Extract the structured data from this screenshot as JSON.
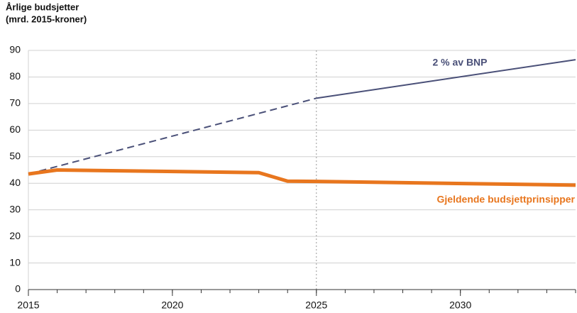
{
  "chart_data": {
    "type": "line",
    "title": [
      "Årlige budsjetter",
      "(mrd. 2015-kroner)"
    ],
    "xlim": [
      2015,
      2034
    ],
    "xticks": [
      2015,
      2020,
      2025,
      2030
    ],
    "ylim": [
      0,
      90
    ],
    "yticks": [
      0,
      10,
      20,
      30,
      40,
      50,
      60,
      70,
      80,
      90
    ],
    "grid": true,
    "vline": 2025,
    "series": [
      {
        "name": "2 % av BNP",
        "color": "#4a5078",
        "width": 2,
        "dash_until": 2025,
        "x": [
          2015,
          2025,
          2034
        ],
        "values": [
          43.5,
          72,
          86.5
        ]
      },
      {
        "name": "Gjeldende budsjettprinsipper",
        "color": "#e8761e",
        "width": 5,
        "x": [
          2015,
          2016,
          2023,
          2024,
          2025,
          2034
        ],
        "values": [
          43.5,
          45,
          44,
          40.8,
          40.7,
          39.3
        ]
      }
    ]
  }
}
